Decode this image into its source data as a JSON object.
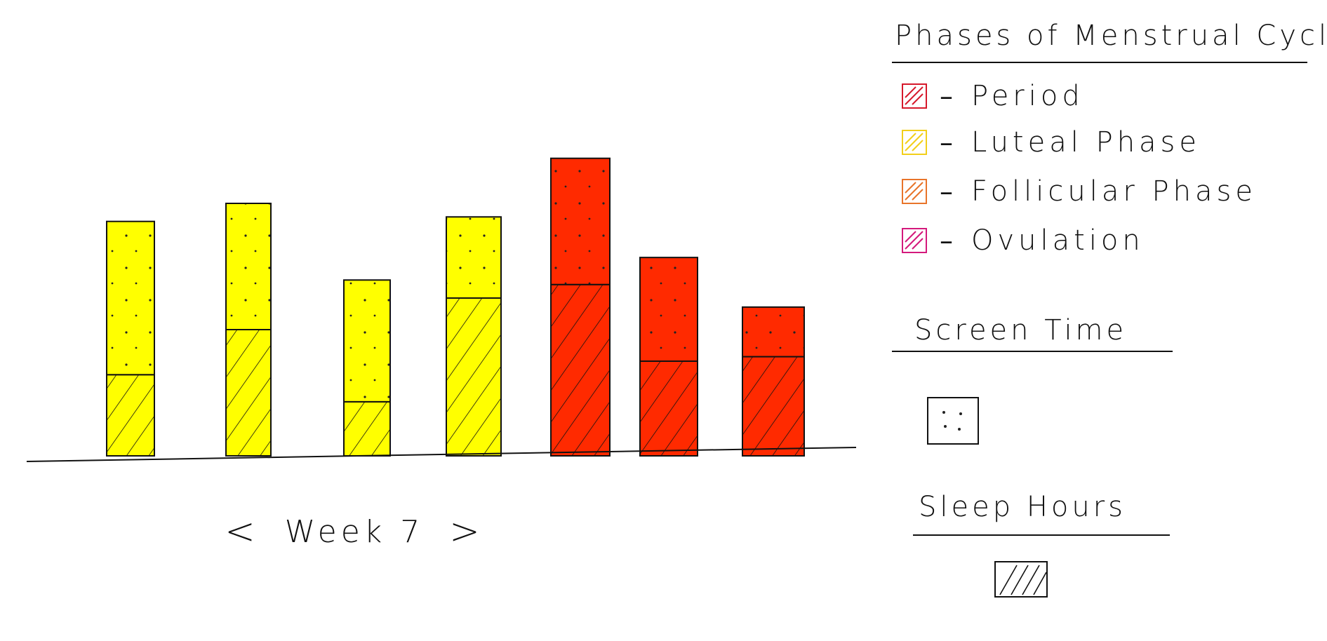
{
  "week_nav": {
    "prev": "<",
    "label": "Week 7",
    "next": ">"
  },
  "legend": {
    "title": "Phases of Menstrual Cycle",
    "items": [
      {
        "label": "Period",
        "color": "#d6192b"
      },
      {
        "label": "Luteal Phase",
        "color": "#f2cf1a"
      },
      {
        "label": "Follicular Phase",
        "color": "#e8742a"
      },
      {
        "label": "Ovulation",
        "color": "#d4197c"
      }
    ]
  },
  "key": {
    "screen_time_title": "Screen Time",
    "sleep_hours_title": "Sleep Hours"
  },
  "colors": {
    "luteal_bar": "#ffff00",
    "period_bar": "#ff2a00"
  },
  "chart_data": {
    "type": "bar",
    "stacked": true,
    "bars": [
      {
        "phase": "Luteal Phase",
        "screen_time": 3.4,
        "sleep_hours": 1.8
      },
      {
        "phase": "Luteal Phase",
        "screen_time": 2.8,
        "sleep_hours": 2.8
      },
      {
        "phase": "Luteal Phase",
        "screen_time": 2.7,
        "sleep_hours": 1.2
      },
      {
        "phase": "Luteal Phase",
        "screen_time": 1.8,
        "sleep_hours": 3.5
      },
      {
        "phase": "Period",
        "screen_time": 2.8,
        "sleep_hours": 3.8
      },
      {
        "phase": "Period",
        "screen_time": 2.3,
        "sleep_hours": 2.1
      },
      {
        "phase": "Period",
        "screen_time": 1.1,
        "sleep_hours": 2.2
      }
    ],
    "ylim": [
      0,
      7
    ],
    "grid": false,
    "legend": "right"
  }
}
